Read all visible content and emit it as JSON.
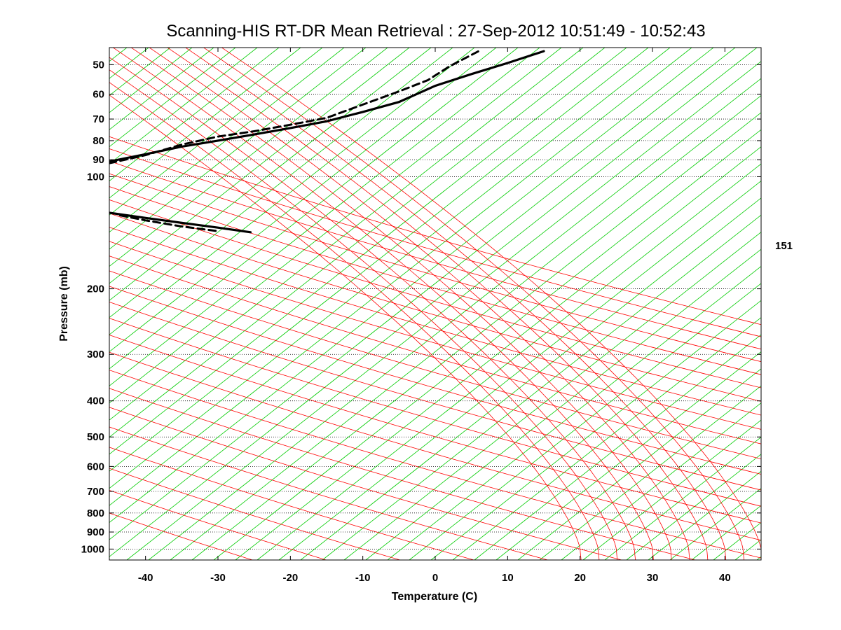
{
  "chart_data": {
    "type": "line",
    "title": "Scanning-HIS RT-DR Mean Retrieval : 27-Sep-2012 10:51:49 - 10:52:43",
    "xlabel": "Temperature (C)",
    "ylabel": "Pressure (mb)",
    "xlim": [
      -45,
      45
    ],
    "ylim": [
      1070,
      45
    ],
    "y_scale": "log",
    "x_ticks": [
      -40,
      -30,
      -20,
      -10,
      0,
      10,
      20,
      30,
      40
    ],
    "y_ticks": [
      50,
      60,
      70,
      80,
      90,
      100,
      200,
      300,
      400,
      500,
      600,
      700,
      800,
      900,
      1000
    ],
    "grid": "horizontal dotted at pressure ticks",
    "side_annotation": "151",
    "colors": {
      "profile": "#000000",
      "dry_adiabat": "#ff0000",
      "moist_adiabat": "#0000ff",
      "mixing_ratio": "#00cc00"
    },
    "series": [
      {
        "style": "solid",
        "segments": [
          [
            [
              -45,
              91
            ],
            [
              -40,
              87
            ],
            [
              -35,
              83
            ],
            [
              -30,
              80
            ],
            [
              -25,
              77
            ],
            [
              -20,
              74
            ],
            [
              -15,
              71
            ],
            [
              -10,
              67
            ],
            [
              -5,
              63
            ],
            [
              0,
              57
            ],
            [
              5,
              53
            ],
            [
              10,
              49.5
            ],
            [
              15,
              46
            ]
          ],
          [
            [
              -45,
              125
            ],
            [
              -40,
              129
            ],
            [
              -35,
              133
            ],
            [
              -30,
              137
            ],
            [
              -25.5,
              141
            ]
          ]
        ]
      },
      {
        "style": "dashed",
        "segments": [
          [
            [
              -45,
              92
            ],
            [
              -40,
              87.5
            ],
            [
              -35,
              82
            ],
            [
              -30,
              78
            ],
            [
              -25,
              75.5
            ],
            [
              -20,
              72.5
            ],
            [
              -15,
              69.5
            ],
            [
              -10,
              64
            ],
            [
              -5,
              59
            ],
            [
              -1,
              55
            ],
            [
              2,
              50.5
            ],
            [
              6,
              46
            ]
          ],
          [
            [
              -43.5,
              127
            ],
            [
              -40,
              131
            ],
            [
              -35,
              136
            ],
            [
              -30,
              140
            ]
          ]
        ]
      }
    ]
  }
}
